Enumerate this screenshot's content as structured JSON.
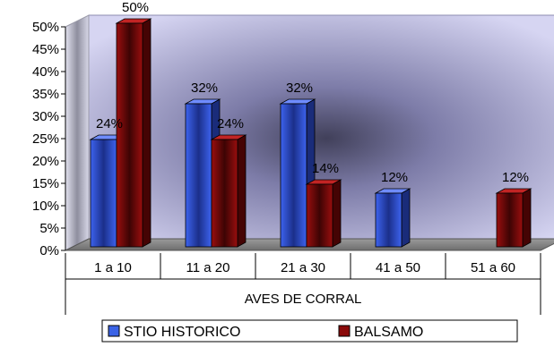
{
  "chart_data": {
    "type": "bar",
    "categories": [
      "1 a 10",
      "11 a 20",
      "21 a 30",
      "41 a 50",
      "51 a 60"
    ],
    "series": [
      {
        "name": "STIO HISTORICO",
        "values": [
          24,
          32,
          32,
          12,
          null
        ]
      },
      {
        "name": "BALSAMO",
        "values": [
          50,
          24,
          14,
          null,
          12
        ]
      }
    ],
    "data_labels": [
      [
        "24%",
        "32%",
        "32%",
        "12%",
        ""
      ],
      [
        "50%",
        "24%",
        "14%",
        "",
        "12%"
      ]
    ],
    "y_ticks": [
      "0%",
      "5%",
      "10%",
      "15%",
      "20%",
      "25%",
      "30%",
      "35%",
      "40%",
      "45%",
      "50%"
    ],
    "ylim": [
      0,
      50
    ],
    "xlabel": "AVES DE CORRAL",
    "ylabel": "",
    "title": "",
    "legend_position": "bottom",
    "grid": false,
    "style": "3d-clustered-column",
    "colors": {
      "series_0": "#3b63e6",
      "series_1": "#8a0a0a",
      "wall": "#c8c7ec"
    }
  }
}
